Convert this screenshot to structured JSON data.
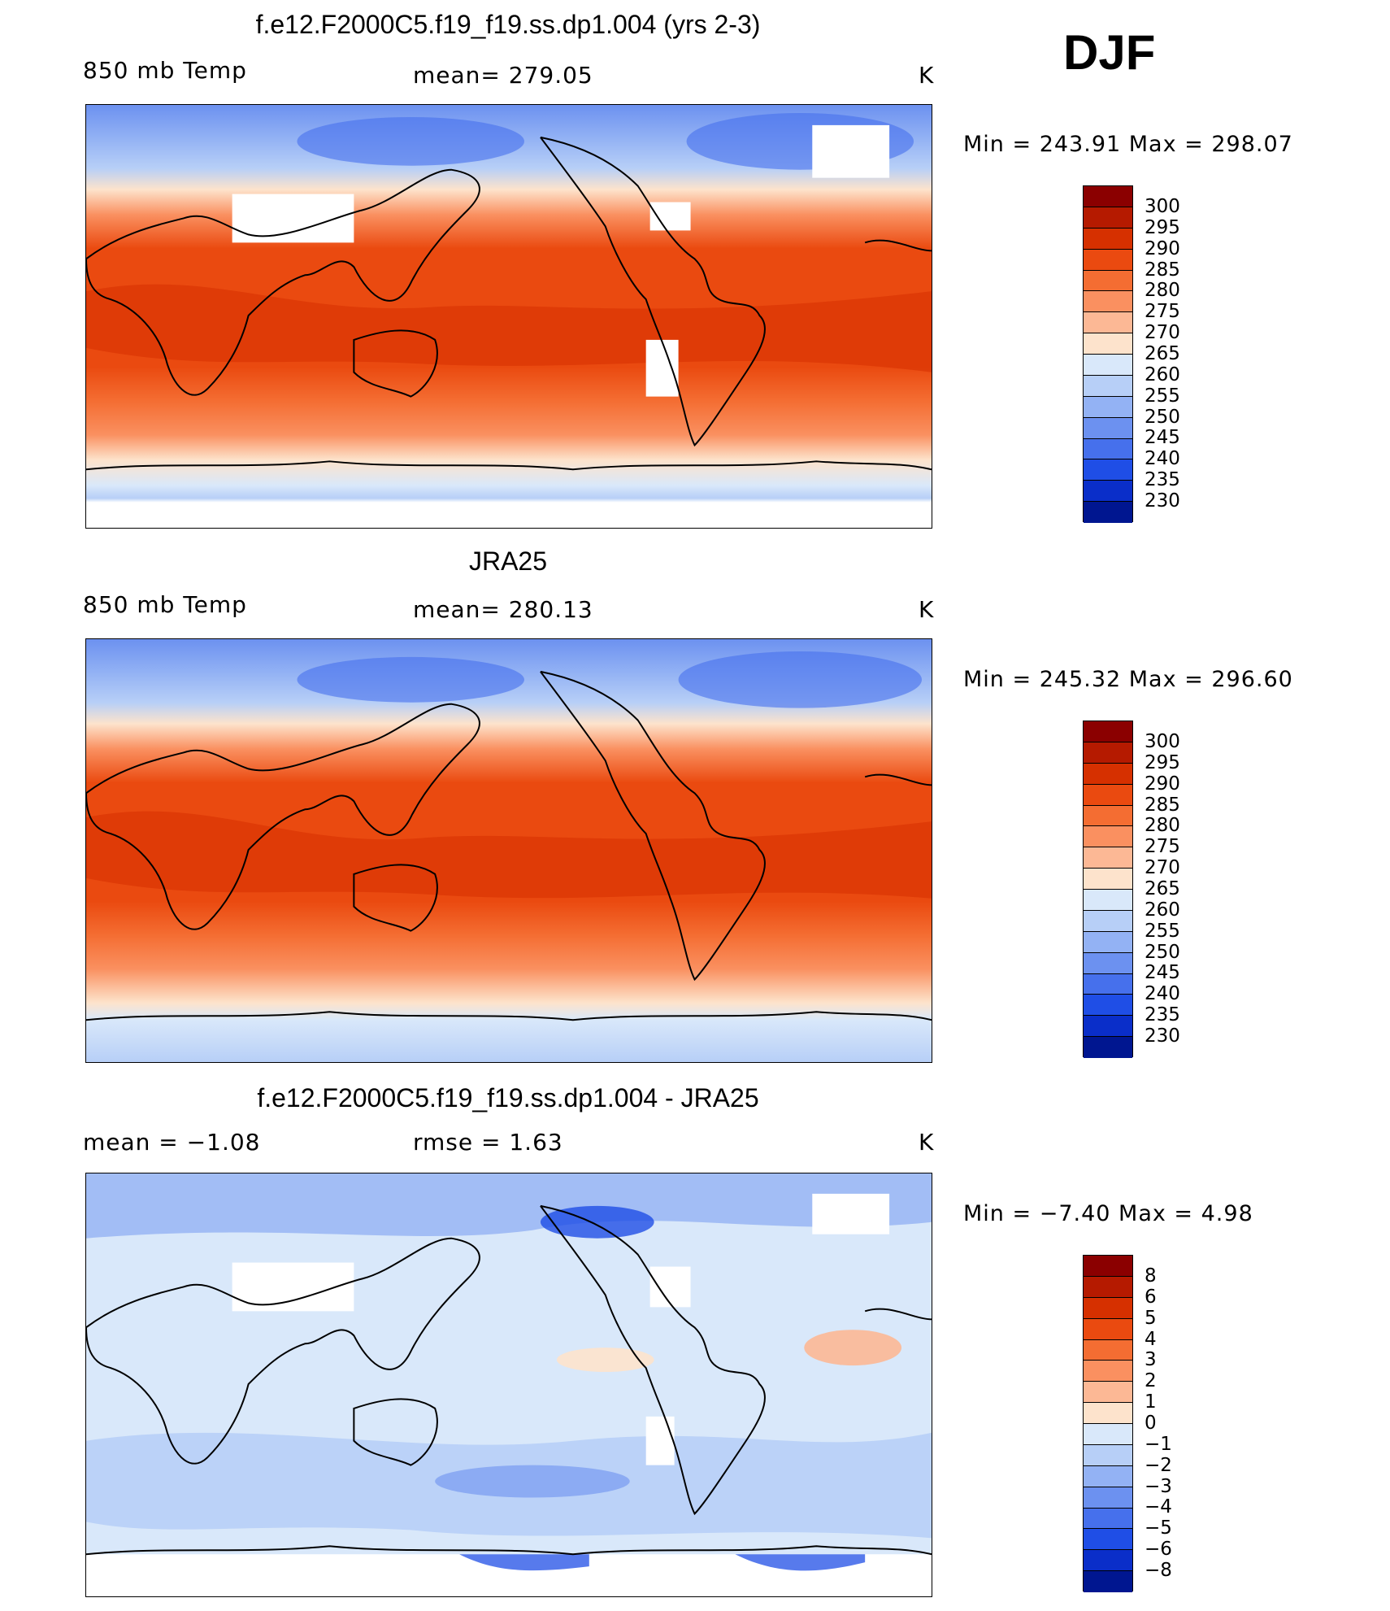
{
  "season": "DJF",
  "panels": [
    {
      "title": "f.e12.F2000C5.f19_f19.ss.dp1.004 (yrs 2-3)",
      "left_label": "850 mb Temp",
      "center_label": "mean=  279.05",
      "units": "K",
      "minmax": "Min  =  243.91  Max  =  298.07",
      "map_label": "Model 850 mb temperature map"
    },
    {
      "title": "JRA25",
      "left_label": "850 mb Temp",
      "center_label": "mean=  280.13",
      "units": "K",
      "minmax": "Min  =  245.32  Max  =  296.60",
      "map_label": "JRA25 850 mb temperature map"
    },
    {
      "title": "f.e12.F2000C5.f19_f19.ss.dp1.004 - JRA25",
      "left_label": "mean  =     −1.08",
      "center_label": "rmse  =      1.63",
      "units": "K",
      "minmax": "Min  =    −7.40  Max  =      4.98",
      "map_label": "Difference map"
    }
  ],
  "colorbar_abs": {
    "labels": [
      "300",
      "295",
      "290",
      "285",
      "280",
      "275",
      "270",
      "265",
      "260",
      "255",
      "250",
      "245",
      "240",
      "235",
      "230"
    ],
    "colors": [
      "#8b0000",
      "#b51a00",
      "#d63000",
      "#ea4a10",
      "#f46d32",
      "#fa9060",
      "#fcb895",
      "#fde3cc",
      "#d9e8fa",
      "#b7cff7",
      "#93b2f4",
      "#6c91f0",
      "#4670ec",
      "#1f4ee6",
      "#0a2ec9",
      "#001690"
    ]
  },
  "colorbar_diff": {
    "labels": [
      "8",
      "6",
      "5",
      "4",
      "3",
      "2",
      "1",
      "0",
      "−1",
      "−2",
      "−3",
      "−4",
      "−5",
      "−6",
      "−8"
    ],
    "colors": [
      "#8b0000",
      "#b51a00",
      "#d63000",
      "#ea4a10",
      "#f46d32",
      "#fa9060",
      "#fcb895",
      "#fde3cc",
      "#d9e8fa",
      "#b7cff7",
      "#93b2f4",
      "#6c91f0",
      "#4670ec",
      "#1f4ee6",
      "#0a2ec9",
      "#001690"
    ]
  }
}
